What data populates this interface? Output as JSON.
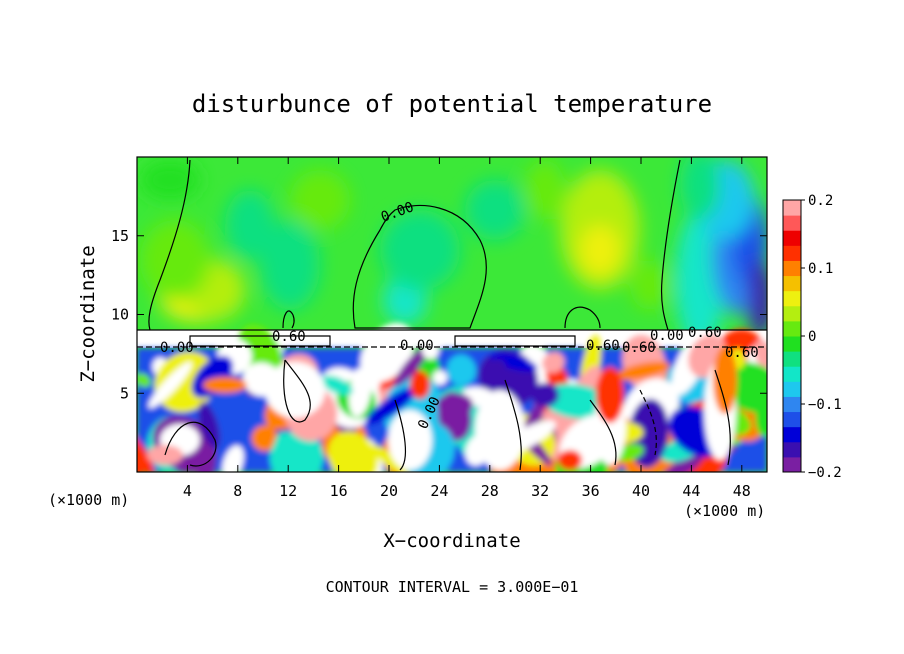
{
  "chart_data": {
    "type": "heatmap",
    "title": "disturbunce of potential temperature",
    "xlabel": "X−coordinate",
    "ylabel": "Z−coordinate",
    "x_unit_left": "(×1000 m)",
    "x_unit_right": "(×1000 m)",
    "xlim": [
      0,
      50
    ],
    "ylim": [
      0,
      20
    ],
    "x_ticks": [
      4,
      8,
      12,
      16,
      20,
      24,
      28,
      32,
      36,
      40,
      44,
      48
    ],
    "x_tick_labels": [
      "4",
      "8",
      "12",
      "16",
      "20",
      "24",
      "28",
      "32",
      "36",
      "40",
      "44",
      "48"
    ],
    "y_ticks": [
      5,
      10,
      15
    ],
    "y_tick_labels": [
      "5",
      "10",
      "15"
    ],
    "grid": false,
    "colorbar": {
      "range": [
        -0.2,
        0.2
      ],
      "ticks": [
        0.2,
        0.1,
        0,
        -0.1,
        -0.2
      ],
      "tick_labels": [
        "0.2",
        "0.1",
        "0",
        "−0.1",
        "−0.2"
      ],
      "colors": [
        "#7a1fa2",
        "#3a0fb0",
        "#0000d8",
        "#1e4fe8",
        "#2f86f0",
        "#1ec8ee",
        "#12e6c8",
        "#10e080",
        "#20e020",
        "#66ea10",
        "#b4ee10",
        "#eef010",
        "#f5c000",
        "#ff8000",
        "#ff3000",
        "#ee0000",
        "#ff5858",
        "#ffa6a6"
      ]
    },
    "contour_labels": [
      "0.00",
      "0.60",
      "0.60",
      "0.00",
      "0.60",
      "0.00",
      "0.00",
      "0.60",
      "0.60",
      "0.00"
    ],
    "footer": "CONTOUR INTERVAL = 3.000E−01"
  }
}
